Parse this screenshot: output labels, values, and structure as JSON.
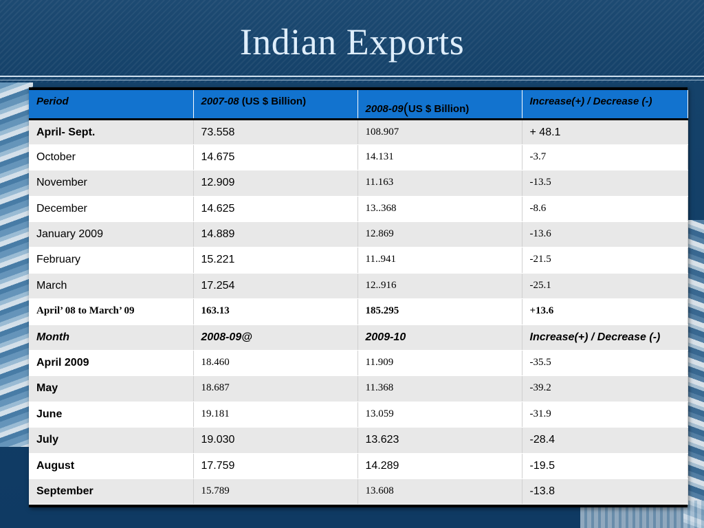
{
  "title": "Indian Exports",
  "table": {
    "header": {
      "period": "Period",
      "col2_italic": "2007-08",
      "col2_normal": " (US $ Billion)",
      "col3_italic": "2008-09",
      "col3_paren": "(",
      "col3_normal": "US $ Billion)",
      "col4": "Increase(+)  /   Decrease (-)"
    },
    "rows1": [
      {
        "period": "April- Sept.",
        "v1": "73.558",
        "v2": "108.907",
        "v3": "+ 48.1"
      },
      {
        "period": "October",
        "v1": "14.675",
        "v2": "14.131",
        "v3": "-3.7"
      },
      {
        "period": "November",
        "v1": "12.909",
        "v2": "11.163",
        "v3": "-13.5"
      },
      {
        "period": "December",
        "v1": "14.625",
        "v2": "13..368",
        "v3": "-8.6"
      },
      {
        "period": "January 2009",
        "v1": "14.889",
        "v2": "12.869",
        "v3": "-13.6"
      },
      {
        "period": "February",
        "v1": "15.221",
        "v2": "11..941",
        "v3": "-21.5"
      },
      {
        "period": "March",
        "v1": "17.254",
        "v2": "12..916",
        "v3": "-25.1"
      },
      {
        "period": "April’ 08 to March’ 09",
        "v1": "163.13",
        "v2": "185.295",
        "v3": "+13.6"
      }
    ],
    "subheader": {
      "month": "Month",
      "col2": "2008-09@",
      "col3": "2009-10",
      "col4": "Increase(+)  /   Decrease (-)"
    },
    "rows2": [
      {
        "period": "April 2009",
        "v1": "18.460",
        "v2": "11.909",
        "v3": "-35.5"
      },
      {
        "period": "May",
        "v1": "18.687",
        "v2": "11.368",
        "v3": "-39.2"
      },
      {
        "period": "June",
        "v1": "19.181",
        "v2": "13.059",
        "v3": "-31.9"
      },
      {
        "period": "July",
        "v1": "19.030",
        "v2": "13.623",
        "v3": "-28.4"
      },
      {
        "period": "August",
        "v1": "17.759",
        "v2": "14.289",
        "v3": "-19.5"
      },
      {
        "period": "September",
        "v1": "15.789",
        "v2": "13.608",
        "v3": "-13.8"
      }
    ]
  }
}
